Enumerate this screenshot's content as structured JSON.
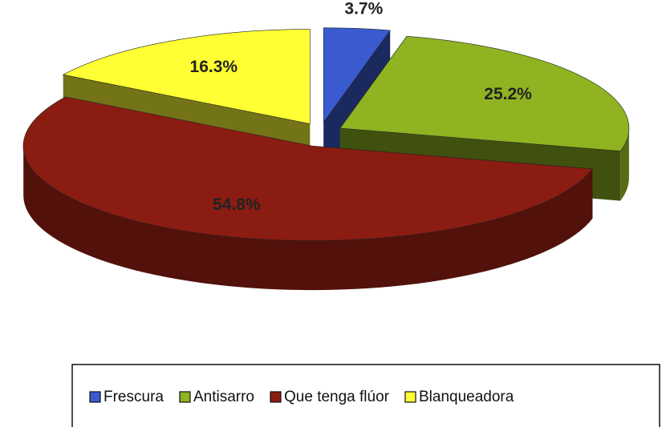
{
  "chart_data": {
    "type": "pie",
    "categories": [
      "Frescura",
      "Antisarro",
      "Que tenga flúor",
      "Blanqueadora"
    ],
    "values": [
      3.7,
      25.2,
      54.8,
      16.3
    ],
    "value_labels": [
      "3.7%",
      "25.2%",
      "54.8%",
      "16.3%"
    ],
    "colors": [
      "#3a5bd0",
      "#8fb321",
      "#8a1c12",
      "#ffff33"
    ],
    "legend": "bottom"
  }
}
